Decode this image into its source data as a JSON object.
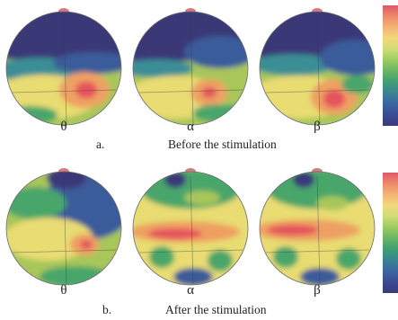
{
  "palette": {
    "dark": "#3a3878",
    "blue": "#3a5c9a",
    "teal": "#3b8e96",
    "green": "#4aa66a",
    "lime": "#a9c65a",
    "yellow": "#e8dc72",
    "orange": "#eea062",
    "red": "#e5525c",
    "pink": "#e58fb0",
    "nose": "#d77a7e"
  },
  "colorbar_colors": [
    "#e05669",
    "#ec8a6a",
    "#f3b474",
    "#f1d97a",
    "#cfdc75",
    "#9ccb62",
    "#68b565",
    "#3f9e73",
    "#3a8392",
    "#3c65a2",
    "#3b4a92",
    "#3a3a7a"
  ],
  "panels": [
    {
      "letter": "a.",
      "caption": "Before the stimulation",
      "bands": [
        "θ",
        "α",
        "β"
      ]
    },
    {
      "letter": "b.",
      "caption": "After the stimulation",
      "bands": [
        "θ",
        "α",
        "β"
      ]
    }
  ]
}
